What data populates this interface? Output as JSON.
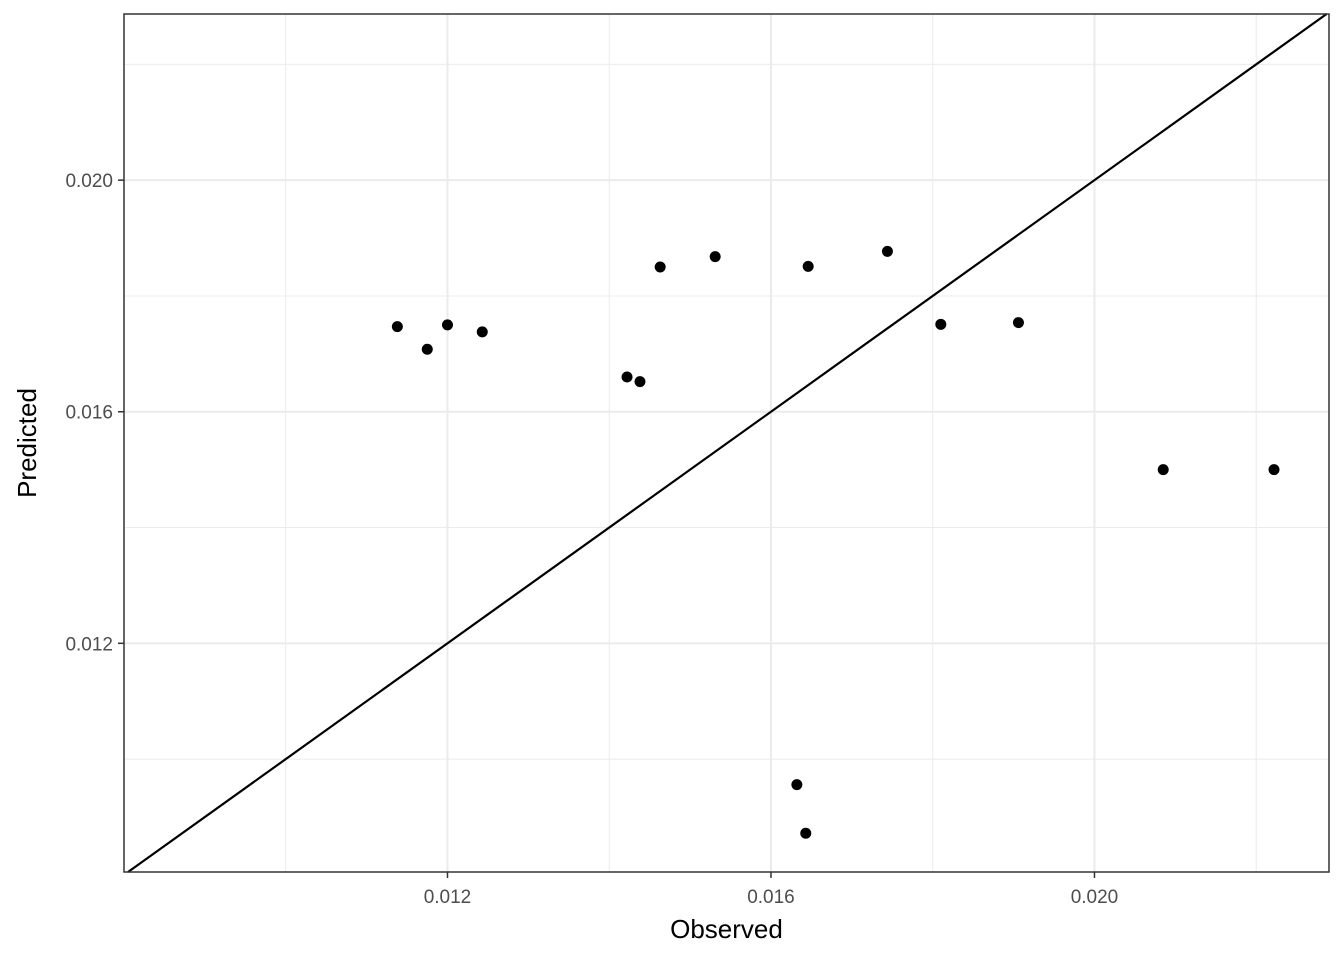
{
  "chart_data": {
    "type": "scatter",
    "title": "",
    "xlabel": "Observed",
    "ylabel": "Predicted",
    "xlim": [
      0.008,
      0.0229
    ],
    "ylim": [
      0.00805,
      0.02287
    ],
    "x_ticks": [
      0.012,
      0.016,
      0.02
    ],
    "x_tick_labels": [
      "0.012",
      "0.016",
      "0.020"
    ],
    "y_ticks": [
      0.012,
      0.016,
      0.02
    ],
    "y_tick_labels": [
      "0.012",
      "0.016",
      "0.020"
    ],
    "grid": true,
    "reference_line": {
      "slope": 1,
      "intercept": 0
    },
    "points": [
      {
        "x": 0.01138,
        "y": 0.01747
      },
      {
        "x": 0.01175,
        "y": 0.01708
      },
      {
        "x": 0.012,
        "y": 0.0175
      },
      {
        "x": 0.01243,
        "y": 0.01738
      },
      {
        "x": 0.01422,
        "y": 0.0166
      },
      {
        "x": 0.01438,
        "y": 0.01652
      },
      {
        "x": 0.01463,
        "y": 0.0185
      },
      {
        "x": 0.01531,
        "y": 0.01868
      },
      {
        "x": 0.01646,
        "y": 0.01851
      },
      {
        "x": 0.01744,
        "y": 0.01877
      },
      {
        "x": 0.0181,
        "y": 0.01751
      },
      {
        "x": 0.01906,
        "y": 0.01754
      },
      {
        "x": 0.02085,
        "y": 0.015
      },
      {
        "x": 0.02222,
        "y": 0.015
      },
      {
        "x": 0.01632,
        "y": 0.00956
      },
      {
        "x": 0.01643,
        "y": 0.00872
      }
    ]
  }
}
